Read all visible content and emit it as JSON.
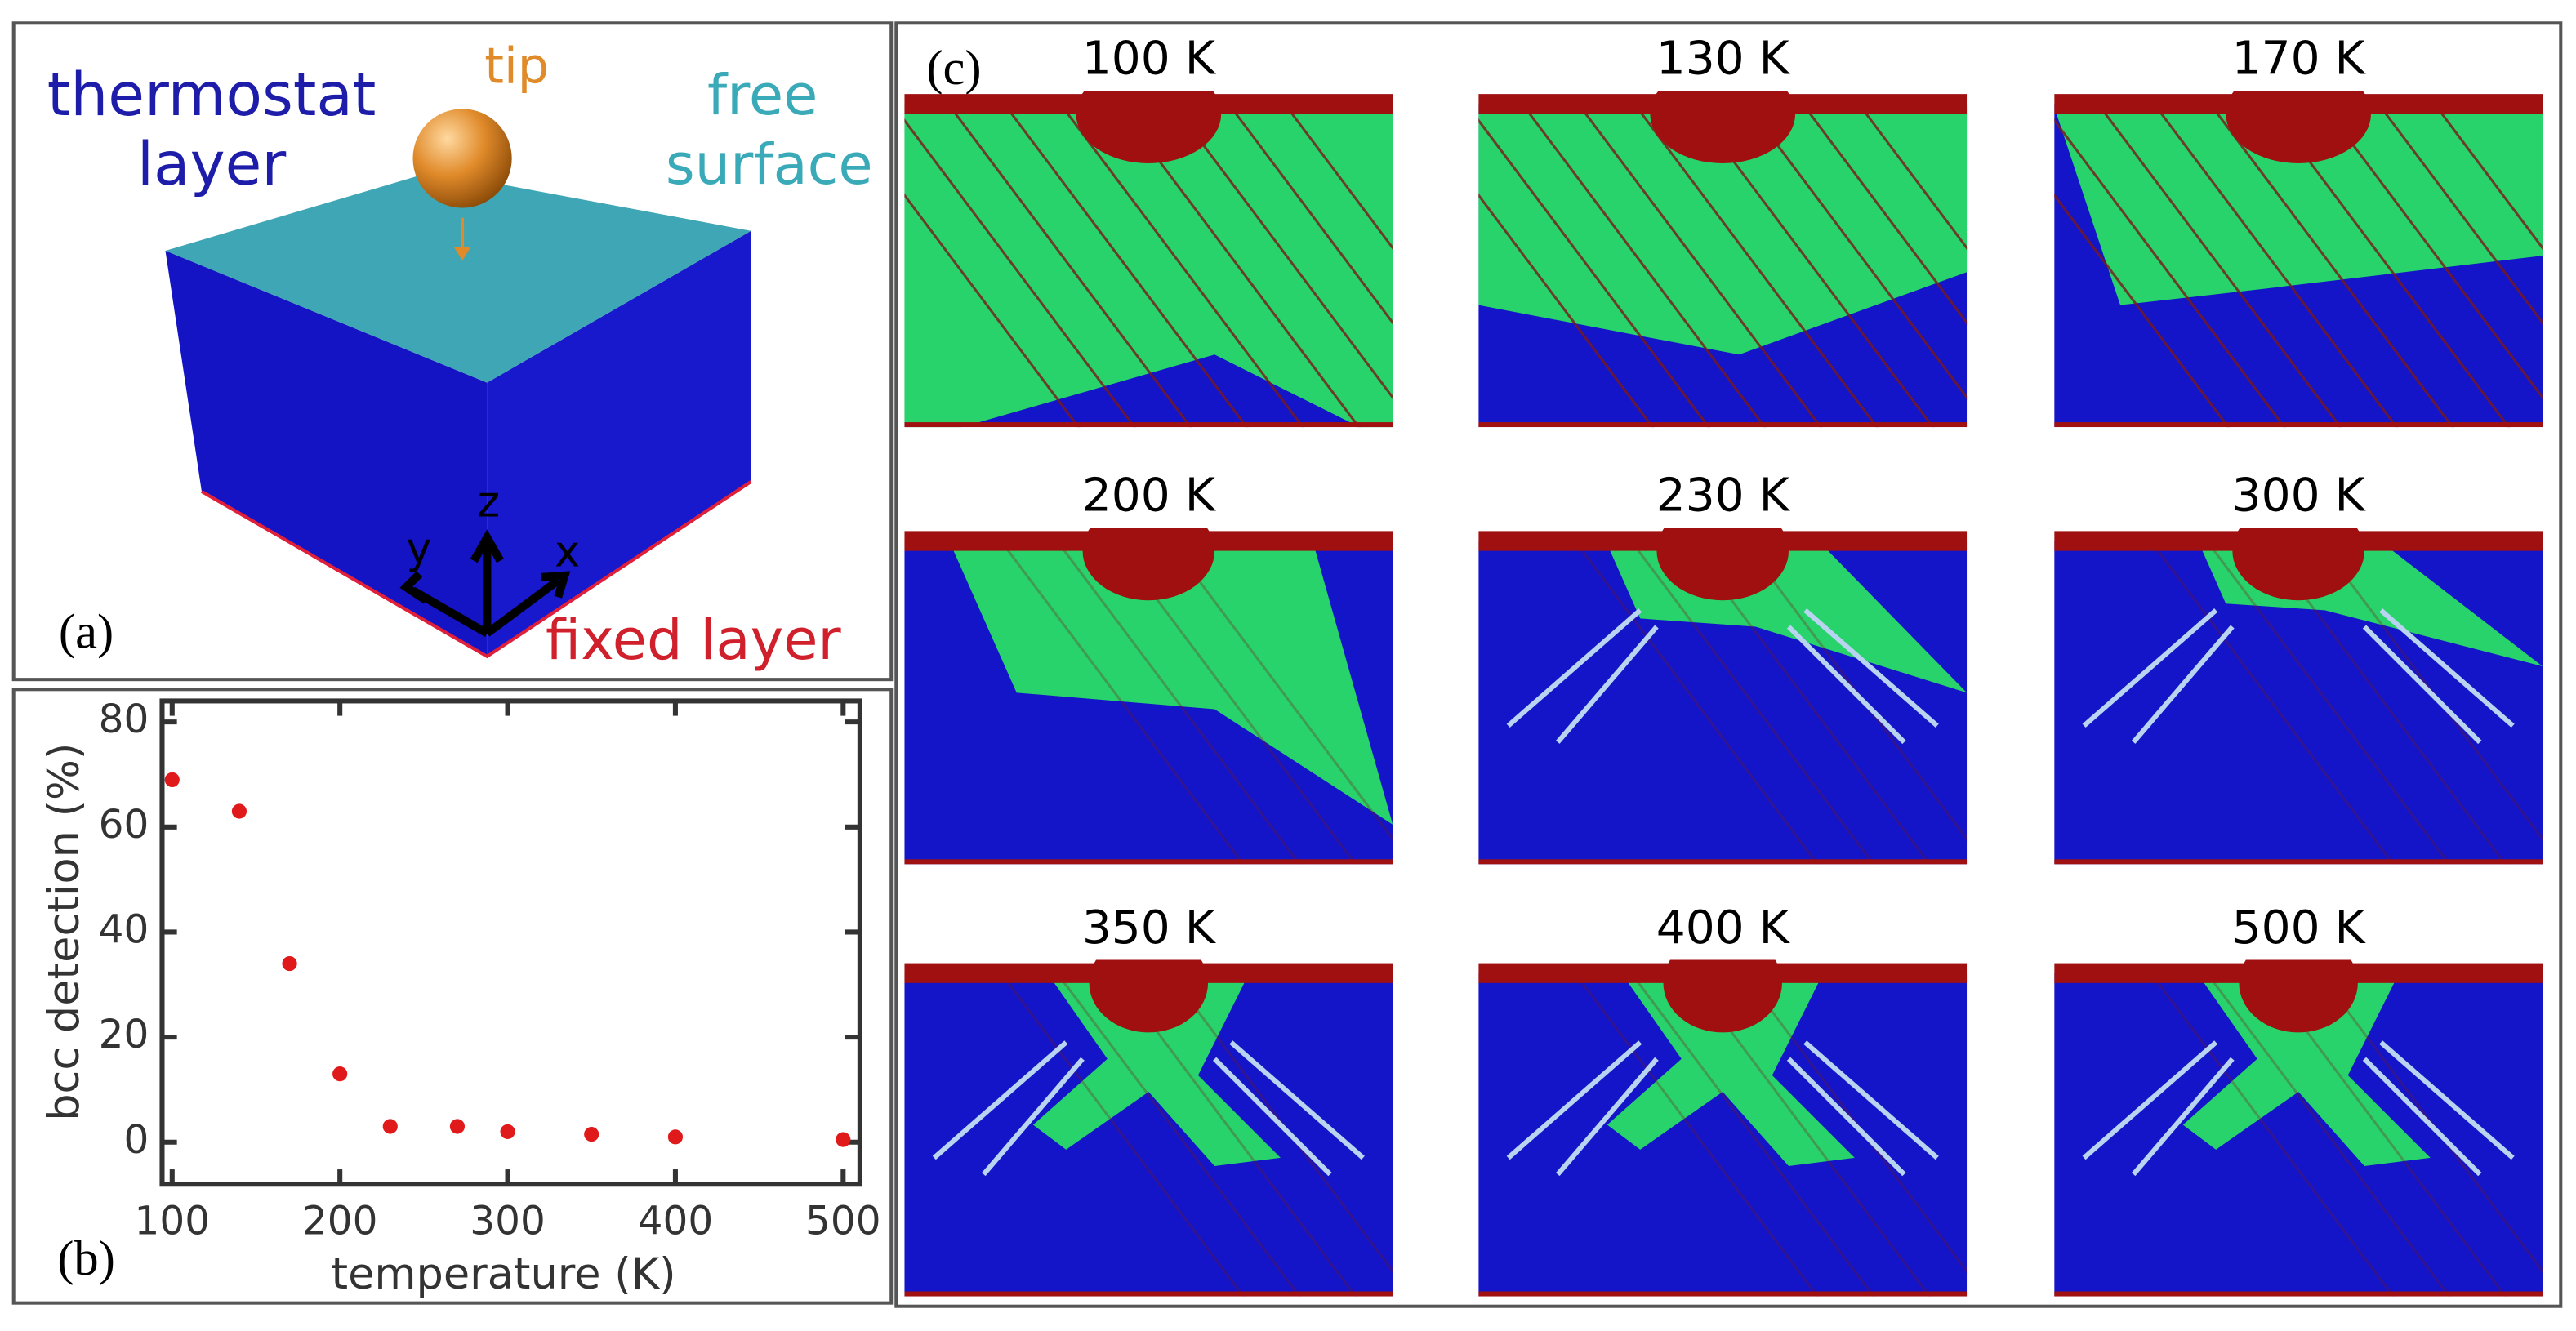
{
  "panel_a": {
    "label": "(a)",
    "thermostat": [
      "thermostat",
      "layer"
    ],
    "tip": "tip",
    "free_surface": [
      "free",
      "surface"
    ],
    "fixed_layer": "fixed layer",
    "axes": [
      "x",
      "y",
      "z"
    ]
  },
  "chart_data": {
    "type": "scatter",
    "label": "(b)",
    "xlabel": "temperature (K)",
    "ylabel": "bcc detection (%)",
    "x": [
      100,
      140,
      170,
      200,
      230,
      270,
      300,
      350,
      400,
      500
    ],
    "values": [
      69,
      63,
      34,
      13,
      3,
      3,
      2,
      1.5,
      1,
      0.5
    ],
    "color": "#e0191b",
    "xlim": [
      94,
      510
    ],
    "ylim": [
      -8,
      84
    ],
    "xticks": [
      100,
      200,
      300,
      400,
      500
    ],
    "yticks": [
      0,
      20,
      40,
      60,
      80
    ]
  },
  "panel_c": {
    "label": "(c)",
    "snapshots": [
      "100 K",
      "130 K",
      "170 K",
      "200 K",
      "230 K",
      "300 K",
      "350 K",
      "400 K",
      "500 K"
    ]
  }
}
